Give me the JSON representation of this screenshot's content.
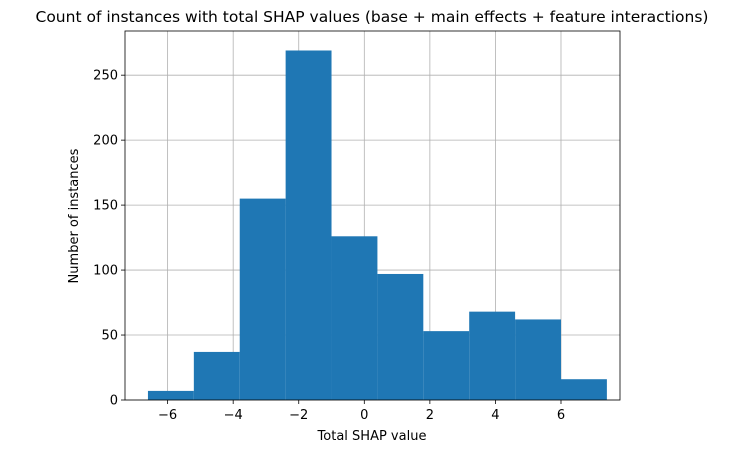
{
  "chart_data": {
    "type": "bar",
    "title": "Count of instances with total SHAP values (base + main effects + feature interactions)",
    "xlabel": "Total SHAP value",
    "ylabel": "Number of instances",
    "bins": [
      {
        "x0": -6.6,
        "x1": -5.2,
        "count": 7
      },
      {
        "x0": -5.2,
        "x1": -3.8,
        "count": 37
      },
      {
        "x0": -3.8,
        "x1": -2.4,
        "count": 155
      },
      {
        "x0": -2.4,
        "x1": -1.0,
        "count": 269
      },
      {
        "x0": -1.0,
        "x1": 0.4,
        "count": 126
      },
      {
        "x0": 0.4,
        "x1": 1.8,
        "count": 97
      },
      {
        "x0": 1.8,
        "x1": 3.2,
        "count": 53
      },
      {
        "x0": 3.2,
        "x1": 4.6,
        "count": 68
      },
      {
        "x0": 4.6,
        "x1": 6.0,
        "count": 62
      },
      {
        "x0": 6.0,
        "x1": 7.4,
        "count": 16
      }
    ],
    "xlim": [
      -7.3,
      7.8
    ],
    "ylim": [
      0,
      284
    ],
    "xticks": [
      -6,
      -4,
      -2,
      0,
      2,
      4,
      6
    ],
    "xtick_labels": [
      "−6",
      "−4",
      "−2",
      "0",
      "2",
      "4",
      "6"
    ],
    "yticks": [
      0,
      50,
      100,
      150,
      200,
      250
    ],
    "ytick_labels": [
      "0",
      "50",
      "100",
      "150",
      "200",
      "250"
    ],
    "grid": true,
    "legend": "none",
    "bar_color": "#1f77b4",
    "grid_color": "#b0b0b0"
  }
}
